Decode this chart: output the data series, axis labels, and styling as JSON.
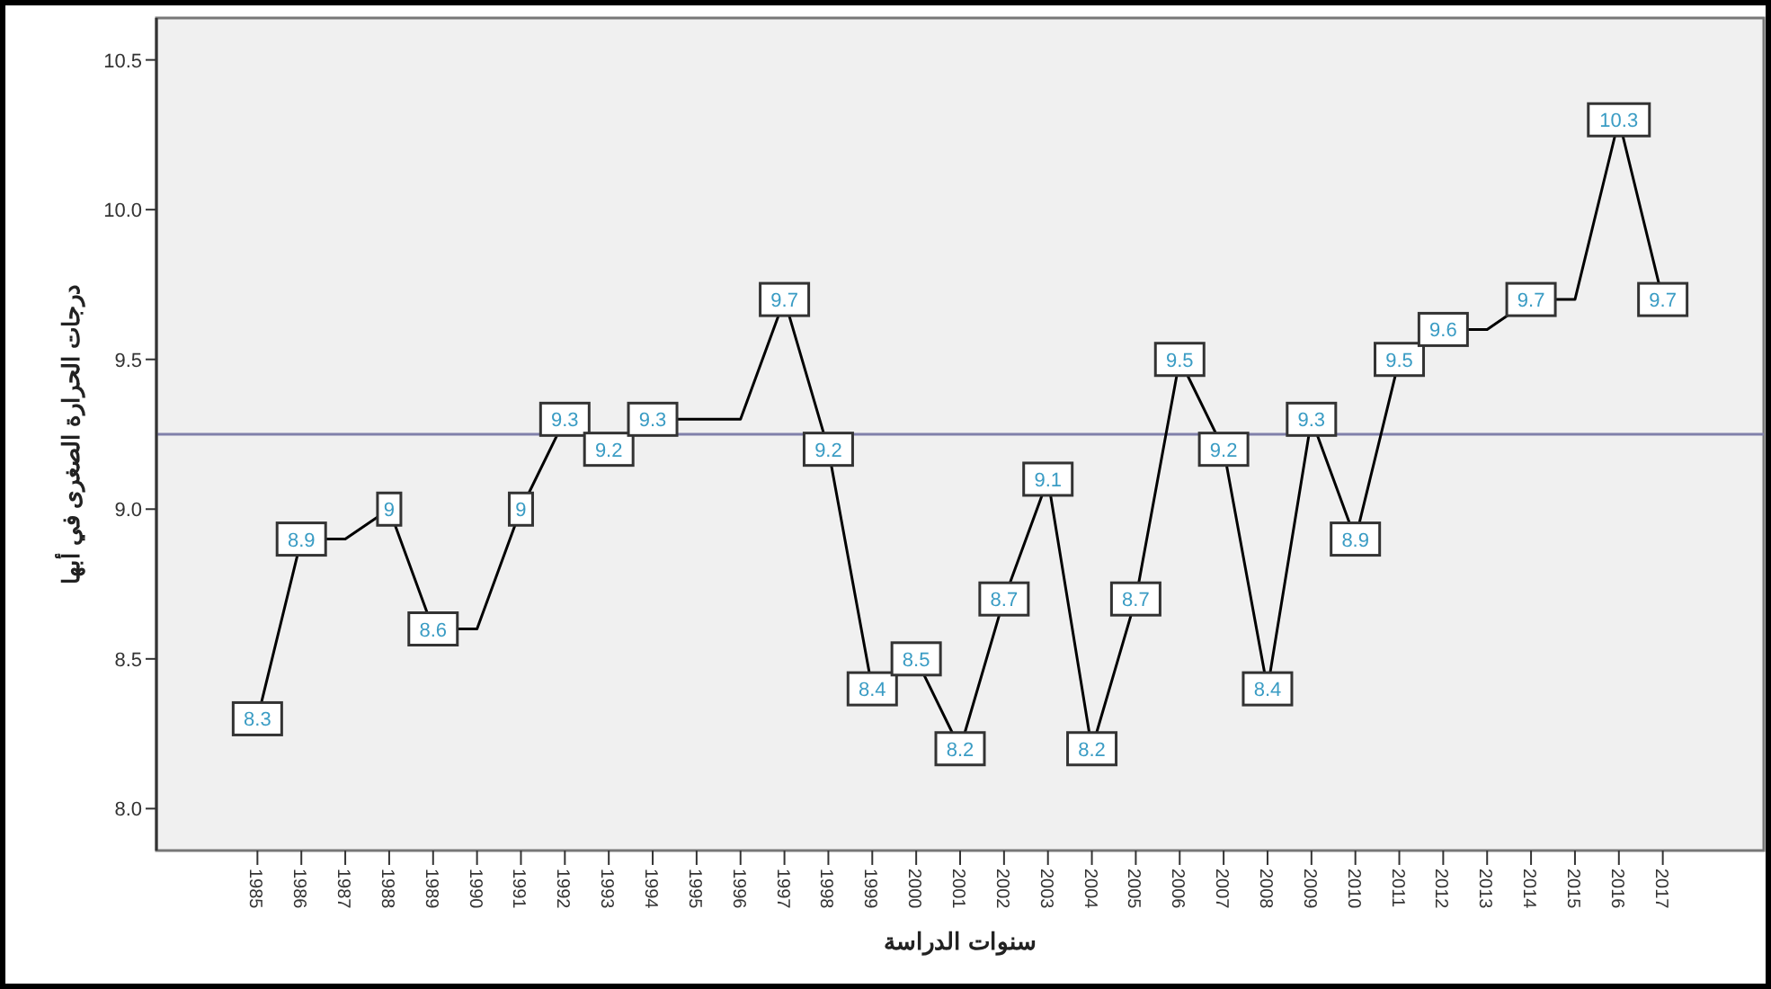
{
  "chart_data": {
    "type": "line",
    "xlabel": "سنوات الدراسة",
    "ylabel": "درجات الحرارة الصغرى في أبها",
    "categories": [
      "1985",
      "1986",
      "1987",
      "1988",
      "1989",
      "1990",
      "1991",
      "1992",
      "1993",
      "1994",
      "1995",
      "1996",
      "1997",
      "1998",
      "1999",
      "2000",
      "2001",
      "2002",
      "2003",
      "2004",
      "2005",
      "2006",
      "2007",
      "2008",
      "2009",
      "2010",
      "2011",
      "2012",
      "2013",
      "2014",
      "2015",
      "2016",
      "2017"
    ],
    "series": [
      {
        "color": "#000000",
        "values": [
          8.3,
          8.9,
          8.9,
          9,
          8.6,
          8.6,
          9,
          9.3,
          9.2,
          9.3,
          9.3,
          9.3,
          9.7,
          9.2,
          8.4,
          8.5,
          8.2,
          8.7,
          9.1,
          8.2,
          8.7,
          9.5,
          9.2,
          8.4,
          9.3,
          8.9,
          9.5,
          9.6,
          9.6,
          9.7,
          9.7,
          10.3,
          9.7
        ],
        "value_labels": [
          "8.3",
          "8.9",
          null,
          "9",
          "8.6",
          null,
          "9",
          "9.3",
          "9.2",
          "9.3",
          null,
          null,
          "9.7",
          "9.2",
          "8.4",
          "8.5",
          "8.2",
          "8.7",
          "9.1",
          "8.2",
          "8.7",
          "9.5",
          "9.2",
          "8.4",
          "9.3",
          "8.9",
          "9.5",
          "9.6",
          null,
          "9.7",
          null,
          "10.3",
          "9.7"
        ]
      }
    ],
    "ylim": [
      7.86,
      10.64
    ],
    "yticks": [
      {
        "value": 8,
        "label": "8.0"
      },
      {
        "value": 8.5,
        "label": "8.5"
      },
      {
        "value": 9,
        "label": "9.0"
      },
      {
        "value": 9.5,
        "label": "9.5"
      },
      {
        "value": 10,
        "label": "10.0"
      },
      {
        "value": 10.5,
        "label": "10.5"
      }
    ],
    "ref_lines": [
      {
        "axis": "y",
        "value": 9.25,
        "color": "#8080aa"
      }
    ],
    "grid": false,
    "marker": "square",
    "line_style": "solid"
  }
}
